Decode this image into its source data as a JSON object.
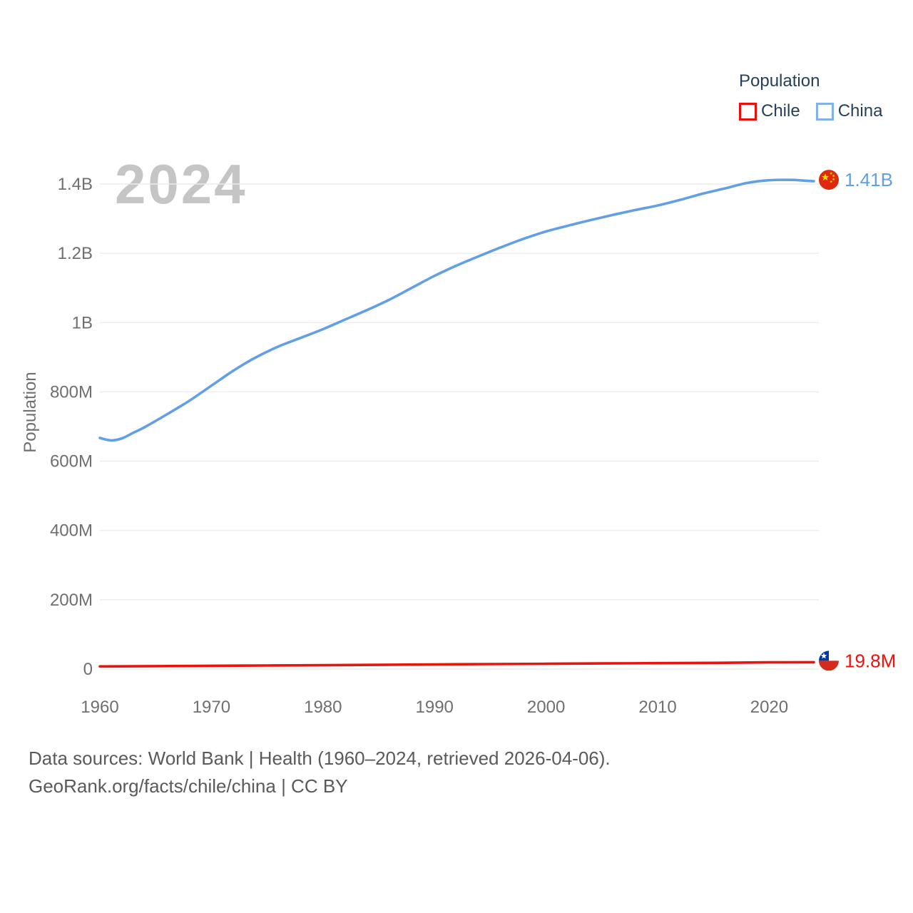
{
  "legend": {
    "title": "Population",
    "items": [
      {
        "label": "Chile",
        "color": "#ed0e0a"
      },
      {
        "label": "China",
        "color": "#7fb2e8"
      }
    ]
  },
  "watermark": "2024",
  "footer": {
    "line1": "Data sources: World Bank | Health (1960–2024, retrieved 2026-04-06).",
    "line2": "GeoRank.org/facts/chile/china | CC BY"
  },
  "chart_data": {
    "type": "line",
    "title": "Population",
    "xlabel": "",
    "ylabel": "Population",
    "xlim": [
      1960,
      2024
    ],
    "ylim_millions": [
      0,
      1400
    ],
    "grid": "horizontal",
    "legend_position": "top-right",
    "tick_color": "#6f6f6f",
    "gridline_color": "#ececec",
    "x_ticks": [
      {
        "value": 1960,
        "label": "1960"
      },
      {
        "value": 1970,
        "label": "1970"
      },
      {
        "value": 1980,
        "label": "1980"
      },
      {
        "value": 1990,
        "label": "1990"
      },
      {
        "value": 2000,
        "label": "2000"
      },
      {
        "value": 2010,
        "label": "2010"
      },
      {
        "value": 2020,
        "label": "2020"
      }
    ],
    "y_ticks": [
      {
        "value_millions": 0,
        "label": "0"
      },
      {
        "value_millions": 200,
        "label": "200M"
      },
      {
        "value_millions": 400,
        "label": "400M"
      },
      {
        "value_millions": 600,
        "label": "600M"
      },
      {
        "value_millions": 800,
        "label": "800M"
      },
      {
        "value_millions": 1000,
        "label": "1B"
      },
      {
        "value_millions": 1200,
        "label": "1.2B"
      },
      {
        "value_millions": 1400,
        "label": "1.4B"
      }
    ],
    "series": [
      {
        "name": "China",
        "color": "#639fe5",
        "flag": "china",
        "end_label": "1.41B",
        "x": [
          1960,
          1961,
          1962,
          1963,
          1964,
          1966,
          1968,
          1970,
          1972,
          1974,
          1976,
          1978,
          1980,
          1982,
          1984,
          1986,
          1988,
          1990,
          1992,
          1994,
          1996,
          1998,
          2000,
          2002,
          2004,
          2006,
          2008,
          2010,
          2012,
          2014,
          2016,
          2018,
          2020,
          2022,
          2023,
          2024
        ],
        "values_millions": [
          667,
          660,
          666,
          682,
          698,
          735,
          774,
          818,
          862,
          900,
          931,
          956,
          981,
          1009,
          1037,
          1067,
          1101,
          1135,
          1165,
          1192,
          1218,
          1242,
          1263,
          1280,
          1296,
          1311,
          1325,
          1338,
          1354,
          1372,
          1387,
          1403,
          1411,
          1412,
          1410,
          1408
        ]
      },
      {
        "name": "Chile",
        "color": "#e8150f",
        "flag": "chile",
        "end_label": "19.8M",
        "x": [
          1960,
          1965,
          1970,
          1975,
          1980,
          1985,
          1990,
          1995,
          2000,
          2005,
          2010,
          2015,
          2020,
          2024
        ],
        "values_millions": [
          7.6,
          8.5,
          9.4,
          10.3,
          11.2,
          12.2,
          13.3,
          14.4,
          15.3,
          16.2,
          17.0,
          17.9,
          19.3,
          19.8
        ]
      }
    ]
  }
}
